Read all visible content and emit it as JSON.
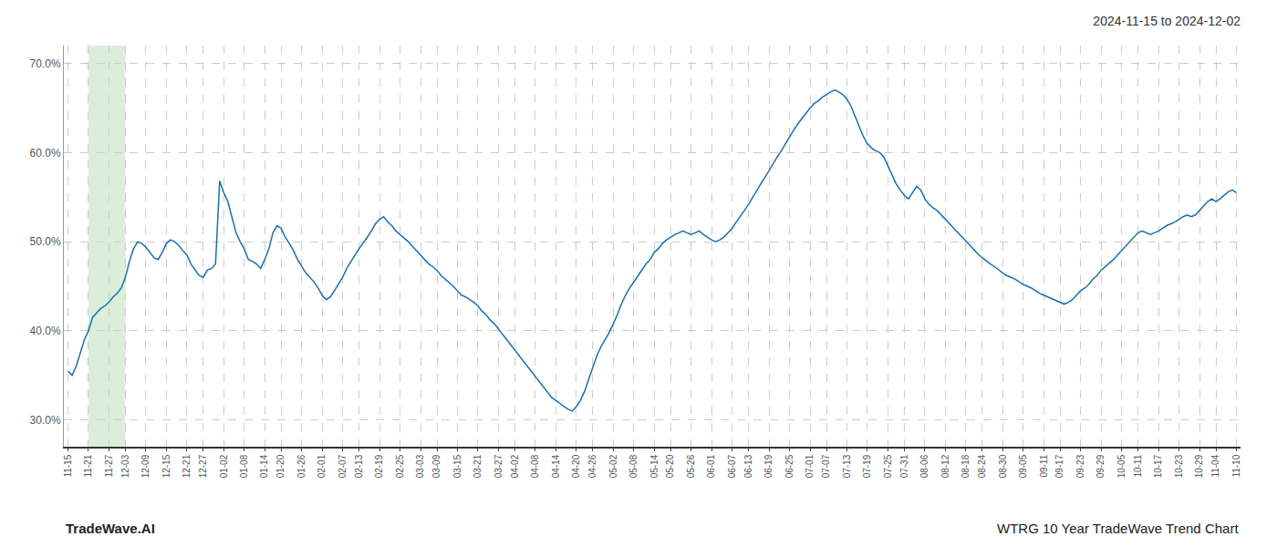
{
  "chart_data": {
    "type": "line",
    "title": "2024-11-15 to 2024-12-02",
    "annotations": [
      {
        "text": "TradeWave.AI"
      },
      {
        "text": "WTRG 10 Year TradeWave Trend Chart"
      }
    ],
    "color": "#1a6faf",
    "grid": true,
    "highlight": {
      "from": "11-21",
      "to": "12-03",
      "color": "#daeeda"
    },
    "ylim": [
      0.27,
      0.72
    ],
    "yticks": [
      {
        "value": 0.3,
        "label": "30.0%"
      },
      {
        "value": 0.4,
        "label": "40.0%"
      },
      {
        "value": 0.5,
        "label": "50.0%"
      },
      {
        "value": 0.6,
        "label": "60.0%"
      },
      {
        "value": 0.7,
        "label": "70.0%"
      }
    ],
    "categories": [
      "11-15",
      null,
      null,
      null,
      null,
      "11-21",
      null,
      null,
      null,
      null,
      "11-27",
      null,
      null,
      null,
      "12-03",
      null,
      null,
      null,
      null,
      "12-09",
      null,
      null,
      null,
      null,
      "12-15",
      null,
      null,
      null,
      null,
      "12-21",
      null,
      null,
      null,
      "12-27",
      null,
      null,
      null,
      null,
      "01-02",
      null,
      null,
      null,
      null,
      "01-08",
      null,
      null,
      null,
      null,
      "01-14",
      null,
      null,
      null,
      "01-20",
      null,
      null,
      null,
      null,
      "01-26",
      null,
      null,
      null,
      null,
      "02-01",
      null,
      null,
      null,
      null,
      "02-07",
      null,
      null,
      null,
      "02-13",
      null,
      null,
      null,
      null,
      "02-19",
      null,
      null,
      null,
      null,
      "02-25",
      null,
      null,
      null,
      null,
      "03-03",
      null,
      null,
      null,
      "03-09",
      null,
      null,
      null,
      null,
      "03-15",
      null,
      null,
      null,
      null,
      "03-21",
      null,
      null,
      null,
      null,
      "03-27",
      null,
      null,
      null,
      "04-02",
      null,
      null,
      null,
      null,
      "04-08",
      null,
      null,
      null,
      null,
      "04-14",
      null,
      null,
      null,
      null,
      "04-20",
      null,
      null,
      null,
      "04-26",
      null,
      null,
      null,
      null,
      "05-02",
      null,
      null,
      null,
      null,
      "05-08",
      null,
      null,
      null,
      null,
      "05-14",
      null,
      null,
      null,
      "05-20",
      null,
      null,
      null,
      null,
      "05-26",
      null,
      null,
      null,
      null,
      "06-01",
      null,
      null,
      null,
      null,
      "06-07",
      null,
      null,
      null,
      "06-13",
      null,
      null,
      null,
      null,
      "06-19",
      null,
      null,
      null,
      null,
      "06-25",
      null,
      null,
      null,
      null,
      "07-01",
      null,
      null,
      null,
      "07-07",
      null,
      null,
      null,
      null,
      "07-13",
      null,
      null,
      null,
      null,
      "07-19",
      null,
      null,
      null,
      null,
      "07-25",
      null,
      null,
      null,
      "07-31",
      null,
      null,
      null,
      null,
      "08-06",
      null,
      null,
      null,
      null,
      "08-12",
      null,
      null,
      null,
      null,
      "08-18",
      null,
      null,
      null,
      "08-24",
      null,
      null,
      null,
      null,
      "08-30",
      null,
      null,
      null,
      null,
      "09-05",
      null,
      null,
      null,
      null,
      "09-11",
      null,
      null,
      null,
      "09-17",
      null,
      null,
      null,
      null,
      "09-23",
      null,
      null,
      null,
      null,
      "09-29",
      null,
      null,
      null,
      null,
      "10-05",
      null,
      null,
      null,
      "10-11",
      null,
      null,
      null,
      null,
      "10-17",
      null,
      null,
      null,
      null,
      "10-23",
      null,
      null,
      null,
      null,
      "10-29",
      null,
      null,
      null,
      "11-04",
      null,
      null,
      null,
      null,
      "11-10"
    ],
    "values": [
      0.355,
      0.35,
      0.36,
      0.375,
      0.39,
      0.4,
      0.415,
      0.42,
      0.425,
      0.428,
      0.432,
      0.438,
      0.442,
      0.448,
      0.46,
      0.478,
      0.492,
      0.5,
      0.498,
      0.494,
      0.488,
      0.482,
      0.48,
      0.488,
      0.498,
      0.502,
      0.5,
      0.496,
      0.49,
      0.485,
      0.475,
      0.468,
      0.462,
      0.46,
      0.468,
      0.47,
      0.475,
      0.568,
      0.555,
      0.545,
      0.528,
      0.51,
      0.5,
      0.492,
      0.48,
      0.478,
      0.475,
      0.47,
      0.48,
      0.492,
      0.51,
      0.518,
      0.515,
      0.505,
      0.498,
      0.49,
      0.48,
      0.472,
      0.465,
      0.46,
      0.455,
      0.448,
      0.44,
      0.435,
      0.438,
      0.445,
      0.452,
      0.46,
      0.47,
      0.478,
      0.485,
      0.492,
      0.498,
      0.505,
      0.512,
      0.52,
      0.525,
      0.528,
      0.522,
      0.518,
      0.512,
      0.508,
      0.505,
      0.5,
      0.495,
      0.49,
      0.485,
      0.48,
      0.475,
      0.472,
      0.468,
      0.462,
      0.458,
      0.455,
      0.45,
      0.445,
      0.44,
      0.438,
      0.435,
      0.432,
      0.428,
      0.422,
      0.418,
      0.412,
      0.408,
      0.402,
      0.396,
      0.39,
      0.384,
      0.378,
      0.372,
      0.366,
      0.36,
      0.354,
      0.348,
      0.342,
      0.336,
      0.33,
      0.325,
      0.322,
      0.318,
      0.315,
      0.312,
      0.31,
      0.315,
      0.322,
      0.332,
      0.345,
      0.36,
      0.372,
      0.382,
      0.39,
      0.398,
      0.408,
      0.418,
      0.43,
      0.44,
      0.448,
      0.455,
      0.462,
      0.468,
      0.475,
      0.48,
      0.488,
      0.492,
      0.498,
      0.502,
      0.505,
      0.508,
      0.51,
      0.512,
      0.51,
      0.508,
      0.51,
      0.512,
      0.508,
      0.505,
      0.502,
      0.5,
      0.502,
      0.505,
      0.51,
      0.515,
      0.522,
      0.528,
      0.535,
      0.542,
      0.55,
      0.558,
      0.565,
      0.572,
      0.58,
      0.588,
      0.595,
      0.602,
      0.61,
      0.618,
      0.625,
      0.632,
      0.638,
      0.645,
      0.65,
      0.655,
      0.658,
      0.662,
      0.665,
      0.668,
      0.67,
      0.668,
      0.665,
      0.66,
      0.652,
      0.64,
      0.628,
      0.618,
      0.61,
      0.605,
      0.602,
      0.6,
      0.595,
      0.585,
      0.575,
      0.565,
      0.558,
      0.552,
      0.548,
      0.555,
      0.562,
      0.558,
      0.548,
      0.542,
      0.538,
      0.535,
      0.53,
      0.525,
      0.52,
      0.515,
      0.51,
      0.505,
      0.5,
      0.495,
      0.49,
      0.486,
      0.482,
      0.478,
      0.475,
      0.472,
      0.468,
      0.465,
      0.462,
      0.46,
      0.458,
      0.455,
      0.452,
      0.45,
      0.448,
      0.445,
      0.442,
      0.44,
      0.438,
      0.436,
      0.434,
      0.432,
      0.43,
      0.432,
      0.435,
      0.44,
      0.445,
      0.448,
      0.452,
      0.458,
      0.462,
      0.468,
      0.472,
      0.475,
      0.48,
      0.485,
      0.49,
      0.495,
      0.5,
      0.505,
      0.51,
      0.512,
      0.51,
      0.508,
      0.51,
      0.512,
      0.515,
      0.518,
      0.52,
      0.522,
      0.525,
      0.528,
      0.53,
      0.528,
      0.53,
      0.535,
      0.54,
      0.545,
      0.548,
      0.545,
      0.548,
      0.552,
      0.556,
      0.558,
      0.555
    ]
  }
}
